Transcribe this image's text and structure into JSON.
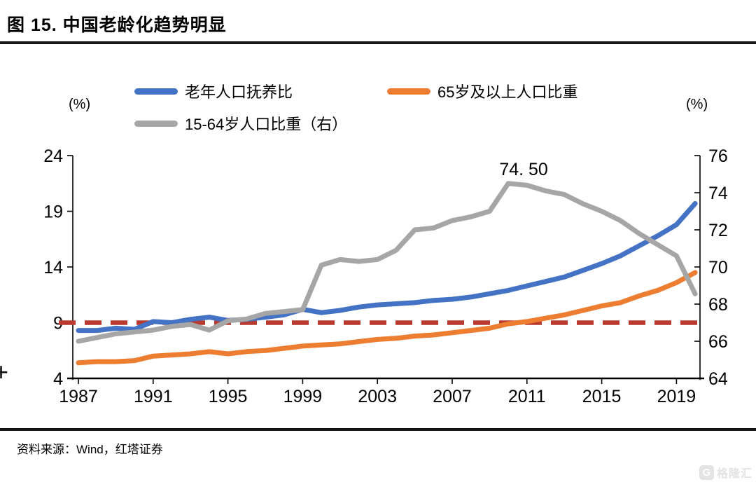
{
  "figure": {
    "title": "图 15. 中国老龄化趋势明显",
    "source": "资料来源：Wind，红塔证券",
    "left_axis_unit": "(%)",
    "right_axis_unit": "(%)",
    "watermark_logo": "G",
    "watermark_text": "格隆汇",
    "plus_mark": "+"
  },
  "chart_data": {
    "type": "line",
    "title": "中国老龄化趋势明显",
    "x": [
      1987,
      1988,
      1989,
      1990,
      1991,
      1992,
      1993,
      1994,
      1995,
      1996,
      1997,
      1998,
      1999,
      2000,
      2001,
      2002,
      2003,
      2004,
      2005,
      2006,
      2007,
      2008,
      2009,
      2010,
      2011,
      2012,
      2013,
      2014,
      2015,
      2016,
      2017,
      2018,
      2019,
      2020
    ],
    "x_tick_labels": [
      "1987",
      "1991",
      "1995",
      "1999",
      "2003",
      "2007",
      "2011",
      "2015",
      "2019"
    ],
    "left_axis": {
      "unit": "(%)",
      "min": 4,
      "max": 24,
      "ticks": [
        4,
        9,
        14,
        19,
        24
      ]
    },
    "right_axis": {
      "unit": "(%)",
      "min": 64,
      "max": 76,
      "ticks": [
        64,
        66,
        68,
        70,
        72,
        74,
        76
      ]
    },
    "grid": false,
    "legend_position": "top",
    "series": [
      {
        "name": "老年人口抚养比",
        "axis": "left",
        "color": "#4472C4",
        "values": [
          8.3,
          8.3,
          8.5,
          8.4,
          9.1,
          9.0,
          9.3,
          9.5,
          9.2,
          9.3,
          9.5,
          9.7,
          10.2,
          9.9,
          10.1,
          10.4,
          10.6,
          10.7,
          10.8,
          11.0,
          11.1,
          11.3,
          11.6,
          11.9,
          12.3,
          12.7,
          13.1,
          13.7,
          14.3,
          15.0,
          15.9,
          16.8,
          17.8,
          19.7
        ]
      },
      {
        "name": "65岁及以上人口比重",
        "axis": "left",
        "color": "#ED7D31",
        "values": [
          5.4,
          5.5,
          5.5,
          5.6,
          6.0,
          6.1,
          6.2,
          6.4,
          6.2,
          6.4,
          6.5,
          6.7,
          6.9,
          7.0,
          7.1,
          7.3,
          7.5,
          7.6,
          7.8,
          7.9,
          8.1,
          8.3,
          8.5,
          8.9,
          9.1,
          9.4,
          9.7,
          10.1,
          10.5,
          10.8,
          11.4,
          11.9,
          12.6,
          13.5
        ]
      },
      {
        "name": "15-64岁人口比重（右）",
        "axis": "right",
        "color": "#A6A6A6",
        "values": [
          66.0,
          66.2,
          66.4,
          66.5,
          66.6,
          66.8,
          66.9,
          66.6,
          67.1,
          67.2,
          67.5,
          67.6,
          67.7,
          70.1,
          70.4,
          70.3,
          70.4,
          70.9,
          72.0,
          72.1,
          72.5,
          72.7,
          73.0,
          74.5,
          74.4,
          74.1,
          73.9,
          73.4,
          73.0,
          72.5,
          71.8,
          71.2,
          70.6,
          68.55
        ]
      }
    ],
    "reference_line": {
      "axis": "left",
      "value": 9,
      "color": "#B93A2E",
      "style": "dashed"
    },
    "annotation": {
      "text": "74. 50",
      "x": 2010,
      "y": 74.5,
      "series": "15-64岁人口比重（右）"
    }
  }
}
